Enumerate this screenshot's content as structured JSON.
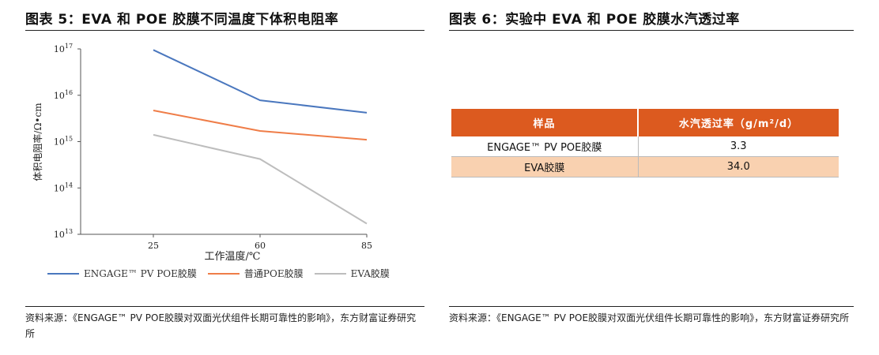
{
  "left_panel": {
    "figure_title": "图表 5：EVA 和 POE 胶膜不同温度下体积电阻率",
    "source": "资料来源：《ENGAGE™ PV POE胶膜对双面光伏组件长期可靠性的影响》，东方财富证券研究所"
  },
  "right_panel": {
    "figure_title": "图表 6：实验中 EVA 和 POE 胶膜水汽透过率",
    "table": {
      "headers": [
        "样品",
        "水汽透过率（g/m²/d）"
      ],
      "rows": [
        [
          "ENGAGE™ PV POE胶膜",
          "3.3"
        ],
        [
          "EVA胶膜",
          "34.0"
        ]
      ]
    },
    "source": "资料来源：《ENGAGE™ PV POE胶膜对双面光伏组件长期可靠性的影响》，东方财富证券研究所"
  },
  "chart_data": {
    "type": "line",
    "title": "",
    "xlabel": "工作温度/℃",
    "ylabel": "体积电阻率/Ω•cm",
    "x": [
      25,
      60,
      85
    ],
    "x_ticks": [
      "25",
      "60",
      "85"
    ],
    "y_scale": "log",
    "ylim": [
      10000000000000.0,
      1e+17
    ],
    "y_ticks": [
      {
        "value": 10000000000000.0,
        "base": "10",
        "exp": "13"
      },
      {
        "value": 100000000000000.0,
        "base": "10",
        "exp": "14"
      },
      {
        "value": 1000000000000000.0,
        "base": "10",
        "exp": "15"
      },
      {
        "value": 1e+16,
        "base": "10",
        "exp": "16"
      },
      {
        "value": 1e+17,
        "base": "10",
        "exp": "17"
      }
    ],
    "grid": false,
    "legend_position": "bottom",
    "series": [
      {
        "name": "ENGAGE™ PV POE胶膜",
        "color": "#4a77be",
        "values": [
          9.5e+16,
          7800000000000000.0,
          4200000000000000.0
        ]
      },
      {
        "name": "普通POE胶膜",
        "color": "#ef7d48",
        "values": [
          4700000000000000.0,
          1700000000000000.0,
          1100000000000000.0
        ]
      },
      {
        "name": "EVA胶膜",
        "color": "#bdbdbd",
        "values": [
          1400000000000000.0,
          420000000000000.0,
          17000000000000.0
        ]
      }
    ]
  }
}
